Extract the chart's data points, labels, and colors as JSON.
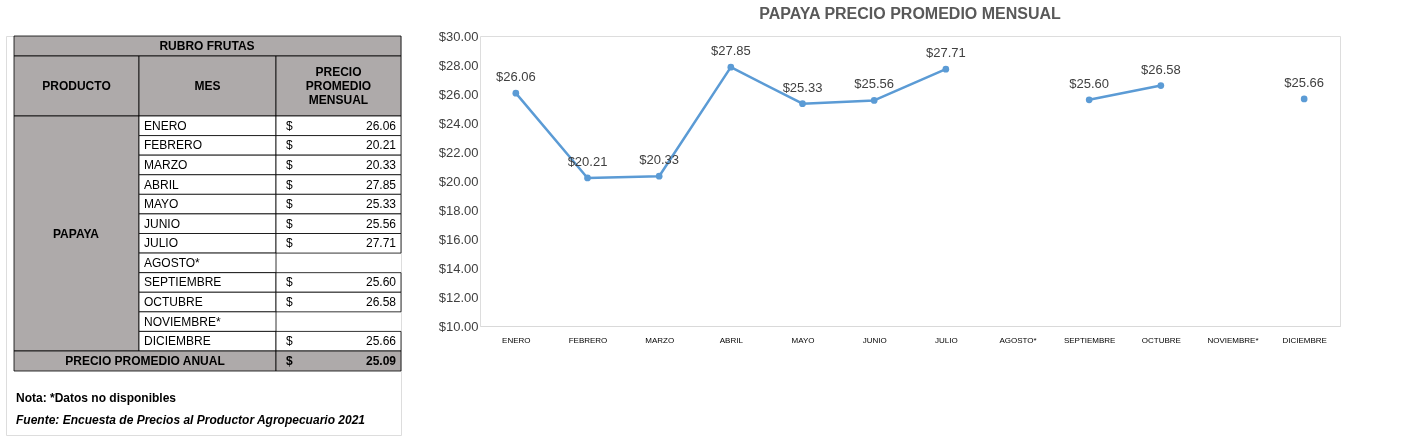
{
  "chart_data": [
    {
      "type": "other",
      "title": "RUBRO FRUTAS",
      "categories": [
        "ENERO",
        "FEBRERO",
        "MARZO",
        "ABRIL",
        "MAYO",
        "JUNIO",
        "JULIO",
        "AGOSTO*",
        "SEPTIEMBRE",
        "OCTUBRE",
        "NOVIEMBRE*",
        "DICIEMBRE"
      ],
      "value_labels": [
        "$ 26.06",
        "$ 20.21",
        "$ 20.33",
        "$ 27.85",
        "$ 25.33",
        "$ 25.56",
        "$ 27.71",
        null,
        "$ 25.60",
        "$ 26.58",
        null,
        "$ 25.66"
      ],
      "annotations": [
        "PRODUCTO",
        "MES",
        "PRECIO PROMEDIO MENSUAL",
        "PAPAYA",
        "PRECIO PROMEDIO ANUAL",
        "$ 25.09",
        "Nota: *Datos no disponibles",
        "Fuente: Encuesta de Precios al Productor Agropecuario 2021"
      ]
    },
    {
      "type": "line",
      "title": "PAPAYA PRECIO PROMEDIO MENSUAL",
      "categories": [
        "ENERO",
        "FEBRERO",
        "MARZO",
        "ABRIL",
        "MAYO",
        "JUNIO",
        "JULIO",
        "AGOSTO*",
        "SEPTIEMBRE",
        "OCTUBRE",
        "NOVIEMBRE*",
        "DICIEMBRE"
      ],
      "series": [
        {
          "color": "#5b9bd5",
          "values": [
            26.06,
            20.21,
            20.33,
            27.85,
            25.33,
            25.56,
            27.71,
            null,
            25.6,
            26.58,
            null,
            25.66
          ],
          "value_labels": [
            "$26.06",
            "$20.21",
            "$20.33",
            "$27.85",
            "$25.33",
            "$25.56",
            "$27.71",
            null,
            "$25.60",
            "$26.58",
            null,
            "$25.66"
          ]
        }
      ],
      "ylim": [
        10,
        30
      ],
      "yticks": [
        {
          "value": 10,
          "label": "$10.00"
        },
        {
          "value": 12,
          "label": "$12.00"
        },
        {
          "value": 14,
          "label": "$14.00"
        },
        {
          "value": 16,
          "label": "$16.00"
        },
        {
          "value": 18,
          "label": "$18.00"
        },
        {
          "value": 20,
          "label": "$20.00"
        },
        {
          "value": 22,
          "label": "$22.00"
        },
        {
          "value": 24,
          "label": "$24.00"
        },
        {
          "value": 26,
          "label": "$26.00"
        },
        {
          "value": 28,
          "label": "$28.00"
        },
        {
          "value": 30,
          "label": "$30.00"
        }
      ],
      "grid": false,
      "marker": "circle",
      "line_style": "solid"
    }
  ]
}
